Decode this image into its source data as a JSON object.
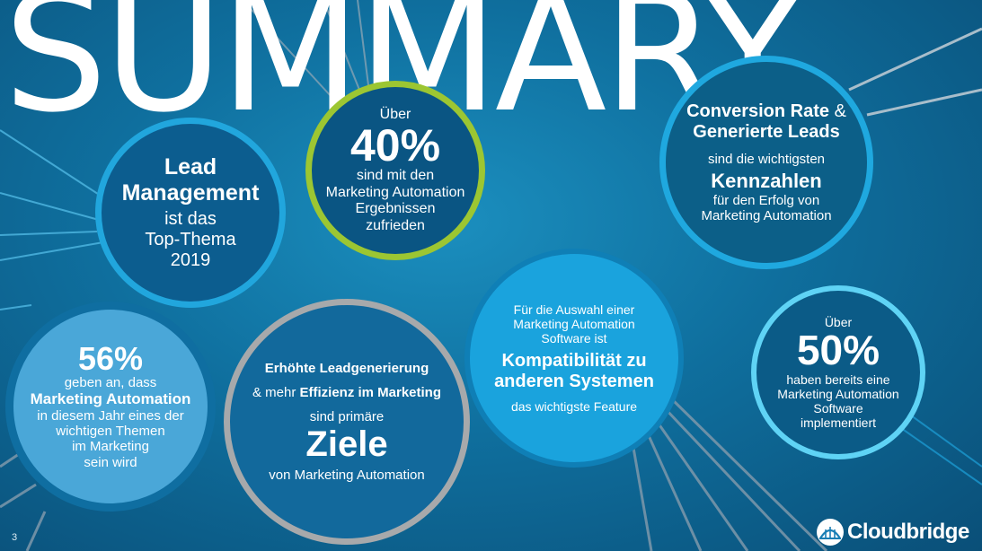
{
  "title": "SUMMARY",
  "page_number": "3",
  "brand": {
    "name": "Cloudbridge"
  },
  "circles": {
    "lead": {
      "line1": "Lead",
      "line2": "Management",
      "line3": "ist das",
      "line4": "Top-Thema",
      "line5": "2019"
    },
    "forty": {
      "pre": "Über",
      "value": "40%",
      "l1": "sind mit den",
      "l2": "Marketing Automation",
      "l3": "Ergebnissen",
      "l4": "zufrieden"
    },
    "conversion": {
      "h1a": "Conversion Rate",
      "h1b": " &",
      "h2": "Generierte Leads",
      "l1": "sind die wichtigsten",
      "big": "Kennzahlen",
      "l2": "für den Erfolg von",
      "l3": "Marketing Automation"
    },
    "fiftysix": {
      "value": "56%",
      "l1": "geben an, dass",
      "bold": "Marketing Automation",
      "l2": "in diesem Jahr eines der",
      "l3": "wichtigen Themen",
      "l4": "im Marketing",
      "l5": "sein wird"
    },
    "ziele": {
      "b1": "Erhöhte Leadgenerierung",
      "pre2": "& mehr ",
      "b2": "Effizienz im Marketing",
      "l1": "sind primäre",
      "big": "Ziele",
      "l2": "von Marketing Automation"
    },
    "compat": {
      "l1": "Für die Auswahl einer",
      "l2": "Marketing Automation",
      "l3": "Software ist",
      "b1": "Kompatibilität zu",
      "b2": "anderen Systemen",
      "l4": "das wichtigste Feature"
    },
    "fifty": {
      "pre": "Über",
      "value": "50%",
      "l1": "haben bereits eine",
      "l2": "Marketing Automation",
      "l3": "Software",
      "l4": "implementiert"
    }
  }
}
